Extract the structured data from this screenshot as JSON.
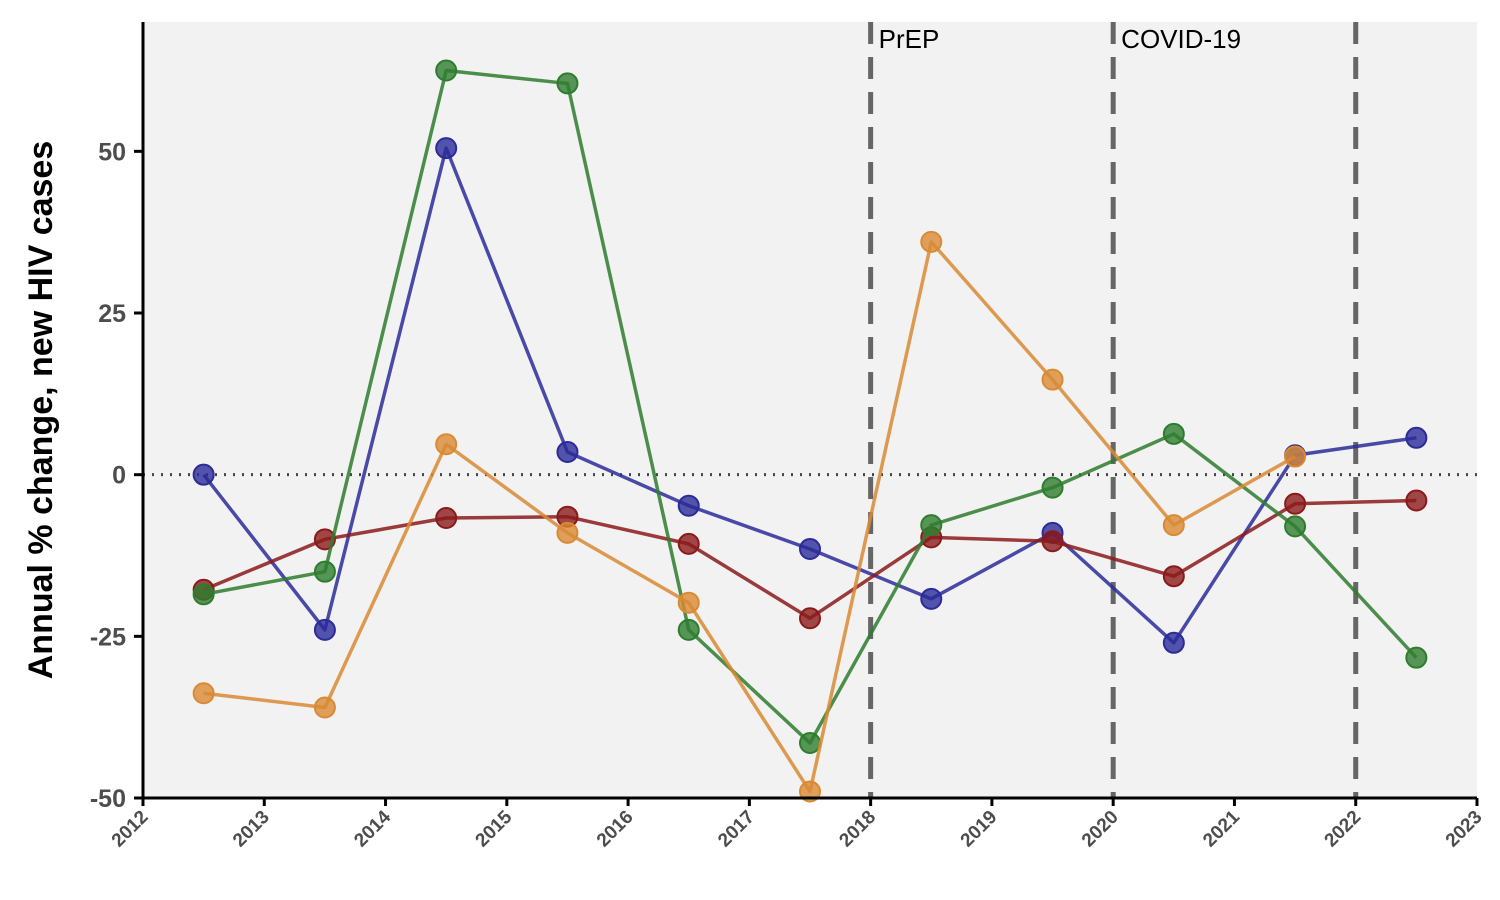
{
  "chart_data": {
    "type": "line",
    "title": "",
    "xlabel": "",
    "ylabel": "Annual % change, new HIV cases",
    "xlim": [
      2012,
      2023
    ],
    "ylim": [
      -50,
      70
    ],
    "x_ticks": [
      "2012",
      "2013",
      "2014",
      "2015",
      "2016",
      "2017",
      "2018",
      "2019",
      "2020",
      "2021",
      "2022",
      "2023"
    ],
    "y_ticks": [
      "-50",
      "-25",
      "0",
      "25",
      "50"
    ],
    "x": [
      2012.5,
      2013.5,
      2014.5,
      2015.5,
      2016.5,
      2017.5,
      2018.5,
      2019.5,
      2020.5,
      2021.5,
      2022.5
    ],
    "grid": false,
    "legend": "none",
    "reference_line": {
      "y": 0,
      "style": "dotted"
    },
    "events": [
      {
        "x": 2018,
        "label": "PrEP"
      },
      {
        "x": 2020,
        "label": "COVID-19"
      },
      {
        "x": 2022,
        "label": ""
      }
    ],
    "series": [
      {
        "color": "#2b2b9a",
        "values": [
          0,
          -24,
          50.5,
          3.5,
          -4.8,
          -11.5,
          -19.2,
          -9,
          -26,
          3,
          5.7
        ]
      },
      {
        "color": "#8b1a1a",
        "values": [
          -17.8,
          -10,
          -6.7,
          -6.5,
          -10.7,
          -22.2,
          -9.7,
          -10.3,
          -15.7,
          -4.5,
          -4
        ]
      },
      {
        "color": "#2e7d2e",
        "values": [
          -18.5,
          -15,
          62.5,
          60.5,
          -24,
          -41.5,
          -7.8,
          -2,
          6.3,
          -8,
          -28.3
        ]
      },
      {
        "color": "#d98a33",
        "values": [
          -33.8,
          -36,
          4.7,
          -9,
          -19.8,
          -49,
          36,
          14.7,
          -7.8,
          2.8,
          null
        ]
      }
    ]
  }
}
